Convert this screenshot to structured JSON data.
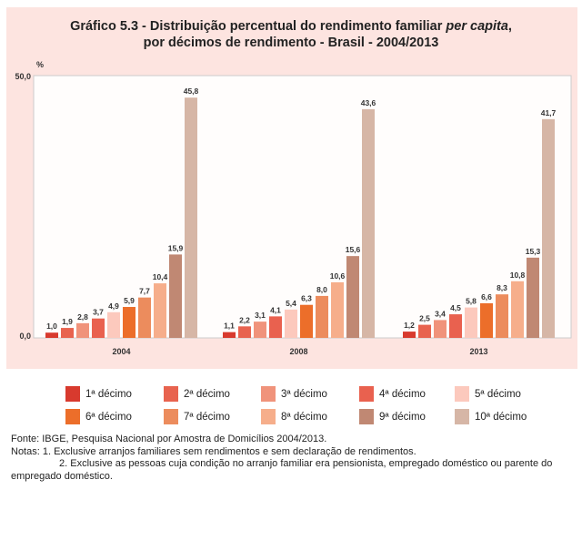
{
  "chart_data": {
    "type": "bar",
    "title_line1": "Gráfico 5.3 - Distribuição percentual do rendimento familiar ",
    "title_italic": "per capita",
    "title_comma": ",",
    "title_line2": "por décimos de rendimento - Brasil - 2004/2013",
    "ylabel": "%",
    "ylim": [
      0,
      50
    ],
    "yticks": [
      "0,0",
      "50,0"
    ],
    "categories": [
      "2004",
      "2008",
      "2013"
    ],
    "series": [
      {
        "name": "1ª décimo",
        "color": "#d83a2e",
        "values": [
          1.0,
          1.1,
          1.2
        ],
        "labels": [
          "1,0",
          "1,1",
          "1,2"
        ]
      },
      {
        "name": "2ª décimo",
        "color": "#e8634f",
        "values": [
          1.9,
          2.2,
          2.5
        ],
        "labels": [
          "1,9",
          "2,2",
          "2,5"
        ]
      },
      {
        "name": "3ª décimo",
        "color": "#f0937b",
        "values": [
          2.8,
          3.1,
          3.4
        ],
        "labels": [
          "2,8",
          "3,1",
          "3,4"
        ]
      },
      {
        "name": "4ª décimo",
        "color": "#e9614f",
        "values": [
          3.7,
          4.1,
          4.5
        ],
        "labels": [
          "3,7",
          "4,1",
          "4,5"
        ]
      },
      {
        "name": "5ª décimo",
        "color": "#fcc9bd",
        "values": [
          4.9,
          5.4,
          5.8
        ],
        "labels": [
          "4,9",
          "5,4",
          "5,8"
        ]
      },
      {
        "name": "6ª décimo",
        "color": "#ec6e2a",
        "values": [
          5.9,
          6.3,
          6.6
        ],
        "labels": [
          "5,9",
          "6,3",
          "6,6"
        ]
      },
      {
        "name": "7ª décimo",
        "color": "#ec8c5d",
        "values": [
          7.7,
          8.0,
          8.3
        ],
        "labels": [
          "7,7",
          "8,0",
          "8,3"
        ]
      },
      {
        "name": "8ª décimo",
        "color": "#f6ae8b",
        "values": [
          10.4,
          10.6,
          10.8
        ],
        "labels": [
          "10,4",
          "10,6",
          "10,8"
        ]
      },
      {
        "name": "9ª décimo",
        "color": "#c08873",
        "values": [
          15.9,
          15.6,
          15.3
        ],
        "labels": [
          "15,9",
          "15,6",
          "15,3"
        ]
      },
      {
        "name": "10ª décimo",
        "color": "#d6b6a6",
        "values": [
          45.8,
          43.6,
          41.7
        ],
        "labels": [
          "45,8",
          "43,6",
          "41,7"
        ]
      }
    ],
    "legend_position": "bottom"
  },
  "footer": {
    "source": "Fonte: IBGE, Pesquisa Nacional por Amostra de Domicílios 2004/2013.",
    "note1": "Notas: 1. Exclusive arranjos familiares sem rendimentos e sem declaração de rendimentos.",
    "note2": "2. Exclusive as pessoas cuja condição no arranjo familiar era pensionista, empregado doméstico ou parente do",
    "note2b": "empregado doméstico."
  }
}
